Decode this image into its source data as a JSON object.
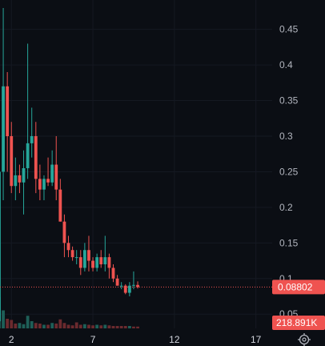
{
  "chart_data": {
    "type": "candlestick",
    "x_tick_labels": [
      {
        "x": 2,
        "label": "2"
      },
      {
        "x": 7,
        "label": "7"
      },
      {
        "x": 12,
        "label": "12"
      },
      {
        "x": 17,
        "label": "17"
      }
    ],
    "y_tick_labels": [
      "0.45",
      "0.4",
      "0.35",
      "0.3",
      "0.25",
      "0.2",
      "0.15",
      "0.1",
      "0.05"
    ],
    "y_ticks": [
      0.45,
      0.4,
      0.35,
      0.3,
      0.25,
      0.2,
      0.15,
      0.1,
      0.05
    ],
    "ylim": [
      0.03,
      0.48
    ],
    "xlim": [
      1.3,
      18.0
    ],
    "grid": true,
    "up_color": "#26a69a",
    "down_color": "#ef5350",
    "last_price": {
      "value": 0.08802,
      "label": "0.08802",
      "color": "#ef5350"
    },
    "volume_tag": {
      "label": "218.891K",
      "color": "#ef5350"
    },
    "candles": [
      {
        "x": 1.25,
        "o": 0.04,
        "h": 0.47,
        "l": 0.03,
        "c": 0.25
      },
      {
        "x": 1.5,
        "o": 0.25,
        "h": 0.48,
        "l": 0.21,
        "c": 0.37
      },
      {
        "x": 1.75,
        "o": 0.37,
        "h": 0.39,
        "l": 0.25,
        "c": 0.3
      },
      {
        "x": 2.0,
        "o": 0.3,
        "h": 0.32,
        "l": 0.22,
        "c": 0.23
      },
      {
        "x": 2.25,
        "o": 0.23,
        "h": 0.27,
        "l": 0.21,
        "c": 0.245
      },
      {
        "x": 2.5,
        "o": 0.245,
        "h": 0.26,
        "l": 0.22,
        "c": 0.235
      },
      {
        "x": 2.75,
        "o": 0.235,
        "h": 0.28,
        "l": 0.19,
        "c": 0.255
      },
      {
        "x": 3.0,
        "o": 0.255,
        "h": 0.43,
        "l": 0.24,
        "c": 0.29
      },
      {
        "x": 3.25,
        "o": 0.29,
        "h": 0.34,
        "l": 0.27,
        "c": 0.3
      },
      {
        "x": 3.5,
        "o": 0.3,
        "h": 0.32,
        "l": 0.22,
        "c": 0.24
      },
      {
        "x": 3.75,
        "o": 0.24,
        "h": 0.26,
        "l": 0.21,
        "c": 0.225
      },
      {
        "x": 4.0,
        "o": 0.225,
        "h": 0.245,
        "l": 0.21,
        "c": 0.24
      },
      {
        "x": 4.25,
        "o": 0.24,
        "h": 0.27,
        "l": 0.23,
        "c": 0.235
      },
      {
        "x": 4.5,
        "o": 0.235,
        "h": 0.28,
        "l": 0.23,
        "c": 0.26
      },
      {
        "x": 4.75,
        "o": 0.26,
        "h": 0.3,
        "l": 0.21,
        "c": 0.225
      },
      {
        "x": 5.0,
        "o": 0.225,
        "h": 0.24,
        "l": 0.18,
        "c": 0.18
      },
      {
        "x": 5.25,
        "o": 0.18,
        "h": 0.19,
        "l": 0.13,
        "c": 0.15
      },
      {
        "x": 5.5,
        "o": 0.15,
        "h": 0.16,
        "l": 0.13,
        "c": 0.14
      },
      {
        "x": 5.75,
        "o": 0.14,
        "h": 0.145,
        "l": 0.125,
        "c": 0.13
      },
      {
        "x": 6.0,
        "o": 0.13,
        "h": 0.14,
        "l": 0.12,
        "c": 0.13
      },
      {
        "x": 6.25,
        "o": 0.13,
        "h": 0.14,
        "l": 0.105,
        "c": 0.115
      },
      {
        "x": 6.5,
        "o": 0.115,
        "h": 0.15,
        "l": 0.11,
        "c": 0.14
      },
      {
        "x": 6.75,
        "o": 0.14,
        "h": 0.16,
        "l": 0.11,
        "c": 0.125
      },
      {
        "x": 7.0,
        "o": 0.125,
        "h": 0.13,
        "l": 0.11,
        "c": 0.115
      },
      {
        "x": 7.25,
        "o": 0.115,
        "h": 0.135,
        "l": 0.11,
        "c": 0.13
      },
      {
        "x": 7.5,
        "o": 0.13,
        "h": 0.14,
        "l": 0.115,
        "c": 0.12
      },
      {
        "x": 7.75,
        "o": 0.12,
        "h": 0.16,
        "l": 0.11,
        "c": 0.13
      },
      {
        "x": 8.0,
        "o": 0.13,
        "h": 0.135,
        "l": 0.1,
        "c": 0.115
      },
      {
        "x": 8.25,
        "o": 0.115,
        "h": 0.12,
        "l": 0.095,
        "c": 0.1
      },
      {
        "x": 8.5,
        "o": 0.1,
        "h": 0.105,
        "l": 0.09,
        "c": 0.09
      },
      {
        "x": 8.75,
        "o": 0.09,
        "h": 0.095,
        "l": 0.085,
        "c": 0.09
      },
      {
        "x": 9.0,
        "o": 0.09,
        "h": 0.092,
        "l": 0.078,
        "c": 0.08
      },
      {
        "x": 9.25,
        "o": 0.08,
        "h": 0.095,
        "l": 0.075,
        "c": 0.09
      },
      {
        "x": 9.5,
        "o": 0.09,
        "h": 0.11,
        "l": 0.085,
        "c": 0.091
      },
      {
        "x": 9.75,
        "o": 0.091,
        "h": 0.096,
        "l": 0.086,
        "c": 0.088
      }
    ],
    "volume": {
      "ylim": [
        0,
        6
      ],
      "bars": [
        {
          "x": 1.25,
          "v": 5.2,
          "dir": "up"
        },
        {
          "x": 1.5,
          "v": 3.0,
          "dir": "up"
        },
        {
          "x": 1.75,
          "v": 1.6,
          "dir": "down"
        },
        {
          "x": 2.0,
          "v": 1.4,
          "dir": "down"
        },
        {
          "x": 2.25,
          "v": 0.8,
          "dir": "down"
        },
        {
          "x": 2.5,
          "v": 0.9,
          "dir": "up"
        },
        {
          "x": 2.75,
          "v": 0.7,
          "dir": "up"
        },
        {
          "x": 3.0,
          "v": 2.1,
          "dir": "up"
        },
        {
          "x": 3.25,
          "v": 1.2,
          "dir": "up"
        },
        {
          "x": 3.5,
          "v": 0.9,
          "dir": "down"
        },
        {
          "x": 3.75,
          "v": 0.8,
          "dir": "down"
        },
        {
          "x": 4.0,
          "v": 0.6,
          "dir": "up"
        },
        {
          "x": 4.25,
          "v": 0.6,
          "dir": "down"
        },
        {
          "x": 4.5,
          "v": 0.9,
          "dir": "up"
        },
        {
          "x": 4.75,
          "v": 0.8,
          "dir": "down"
        },
        {
          "x": 5.0,
          "v": 1.5,
          "dir": "down"
        },
        {
          "x": 5.25,
          "v": 0.9,
          "dir": "down"
        },
        {
          "x": 5.5,
          "v": 0.6,
          "dir": "down"
        },
        {
          "x": 5.75,
          "v": 0.5,
          "dir": "down"
        },
        {
          "x": 6.0,
          "v": 1.0,
          "dir": "down"
        },
        {
          "x": 6.25,
          "v": 0.6,
          "dir": "down"
        },
        {
          "x": 6.5,
          "v": 0.7,
          "dir": "up"
        },
        {
          "x": 6.75,
          "v": 0.6,
          "dir": "down"
        },
        {
          "x": 7.0,
          "v": 0.5,
          "dir": "down"
        },
        {
          "x": 7.25,
          "v": 0.6,
          "dir": "up"
        },
        {
          "x": 7.5,
          "v": 0.5,
          "dir": "down"
        },
        {
          "x": 7.75,
          "v": 0.6,
          "dir": "up"
        },
        {
          "x": 8.0,
          "v": 0.5,
          "dir": "down"
        },
        {
          "x": 8.25,
          "v": 0.4,
          "dir": "down"
        },
        {
          "x": 8.5,
          "v": 0.4,
          "dir": "down"
        },
        {
          "x": 8.75,
          "v": 0.4,
          "dir": "down"
        },
        {
          "x": 9.0,
          "v": 0.4,
          "dir": "down"
        },
        {
          "x": 9.25,
          "v": 0.4,
          "dir": "up"
        },
        {
          "x": 9.5,
          "v": 0.3,
          "dir": "down"
        },
        {
          "x": 9.75,
          "v": 0.3,
          "dir": "down"
        }
      ]
    }
  },
  "controls": {
    "settings_icon": "gear-icon"
  }
}
